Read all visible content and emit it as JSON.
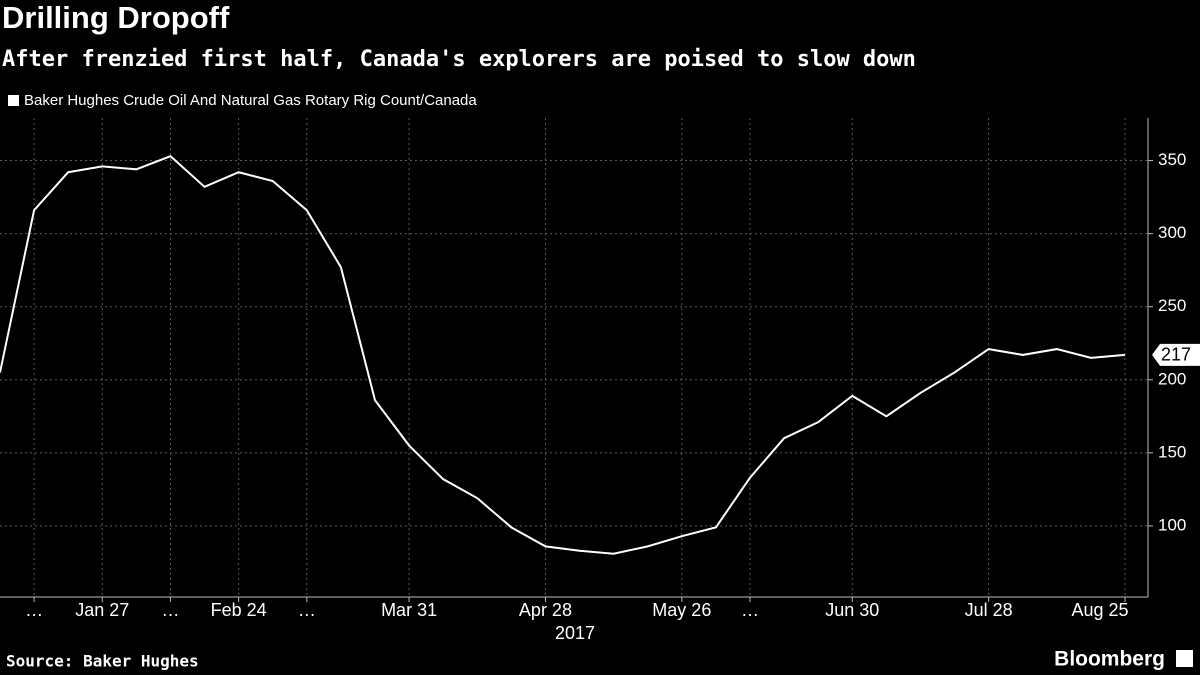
{
  "chart_data": {
    "type": "line",
    "title": "Drilling Dropoff",
    "subtitle": "After frenzied first half, Canada's explorers are poised to slow down",
    "x_label": "2017",
    "source": "Source: Baker Hughes",
    "brand": "Bloomberg",
    "categories": [
      null,
      "…",
      null,
      "Jan 27",
      null,
      "…",
      null,
      "Feb 24",
      null,
      "…",
      null,
      null,
      "Mar 31",
      null,
      null,
      null,
      "Apr 28",
      null,
      null,
      null,
      "May 26",
      null,
      "…",
      null,
      null,
      "Jun 30",
      null,
      null,
      null,
      "Jul 28",
      null,
      null,
      null,
      "Aug 25"
    ],
    "series": [
      {
        "name": "Baker Hughes Crude Oil And Natural Gas Rotary Rig Count/Canada",
        "color": "#ffffff",
        "values": [
          205,
          316,
          342,
          346,
          344,
          353,
          332,
          342,
          336,
          316,
          277,
          186,
          155,
          132,
          119,
          99,
          86,
          83,
          81,
          86,
          93,
          99,
          133,
          160,
          171,
          189,
          175,
          191,
          205,
          221,
          217,
          221,
          215,
          217
        ]
      }
    ],
    "ylim": [
      50,
      375
    ],
    "yticks": [
      100,
      150,
      200,
      250,
      300,
      350
    ],
    "grid": true,
    "background": "#000000"
  }
}
